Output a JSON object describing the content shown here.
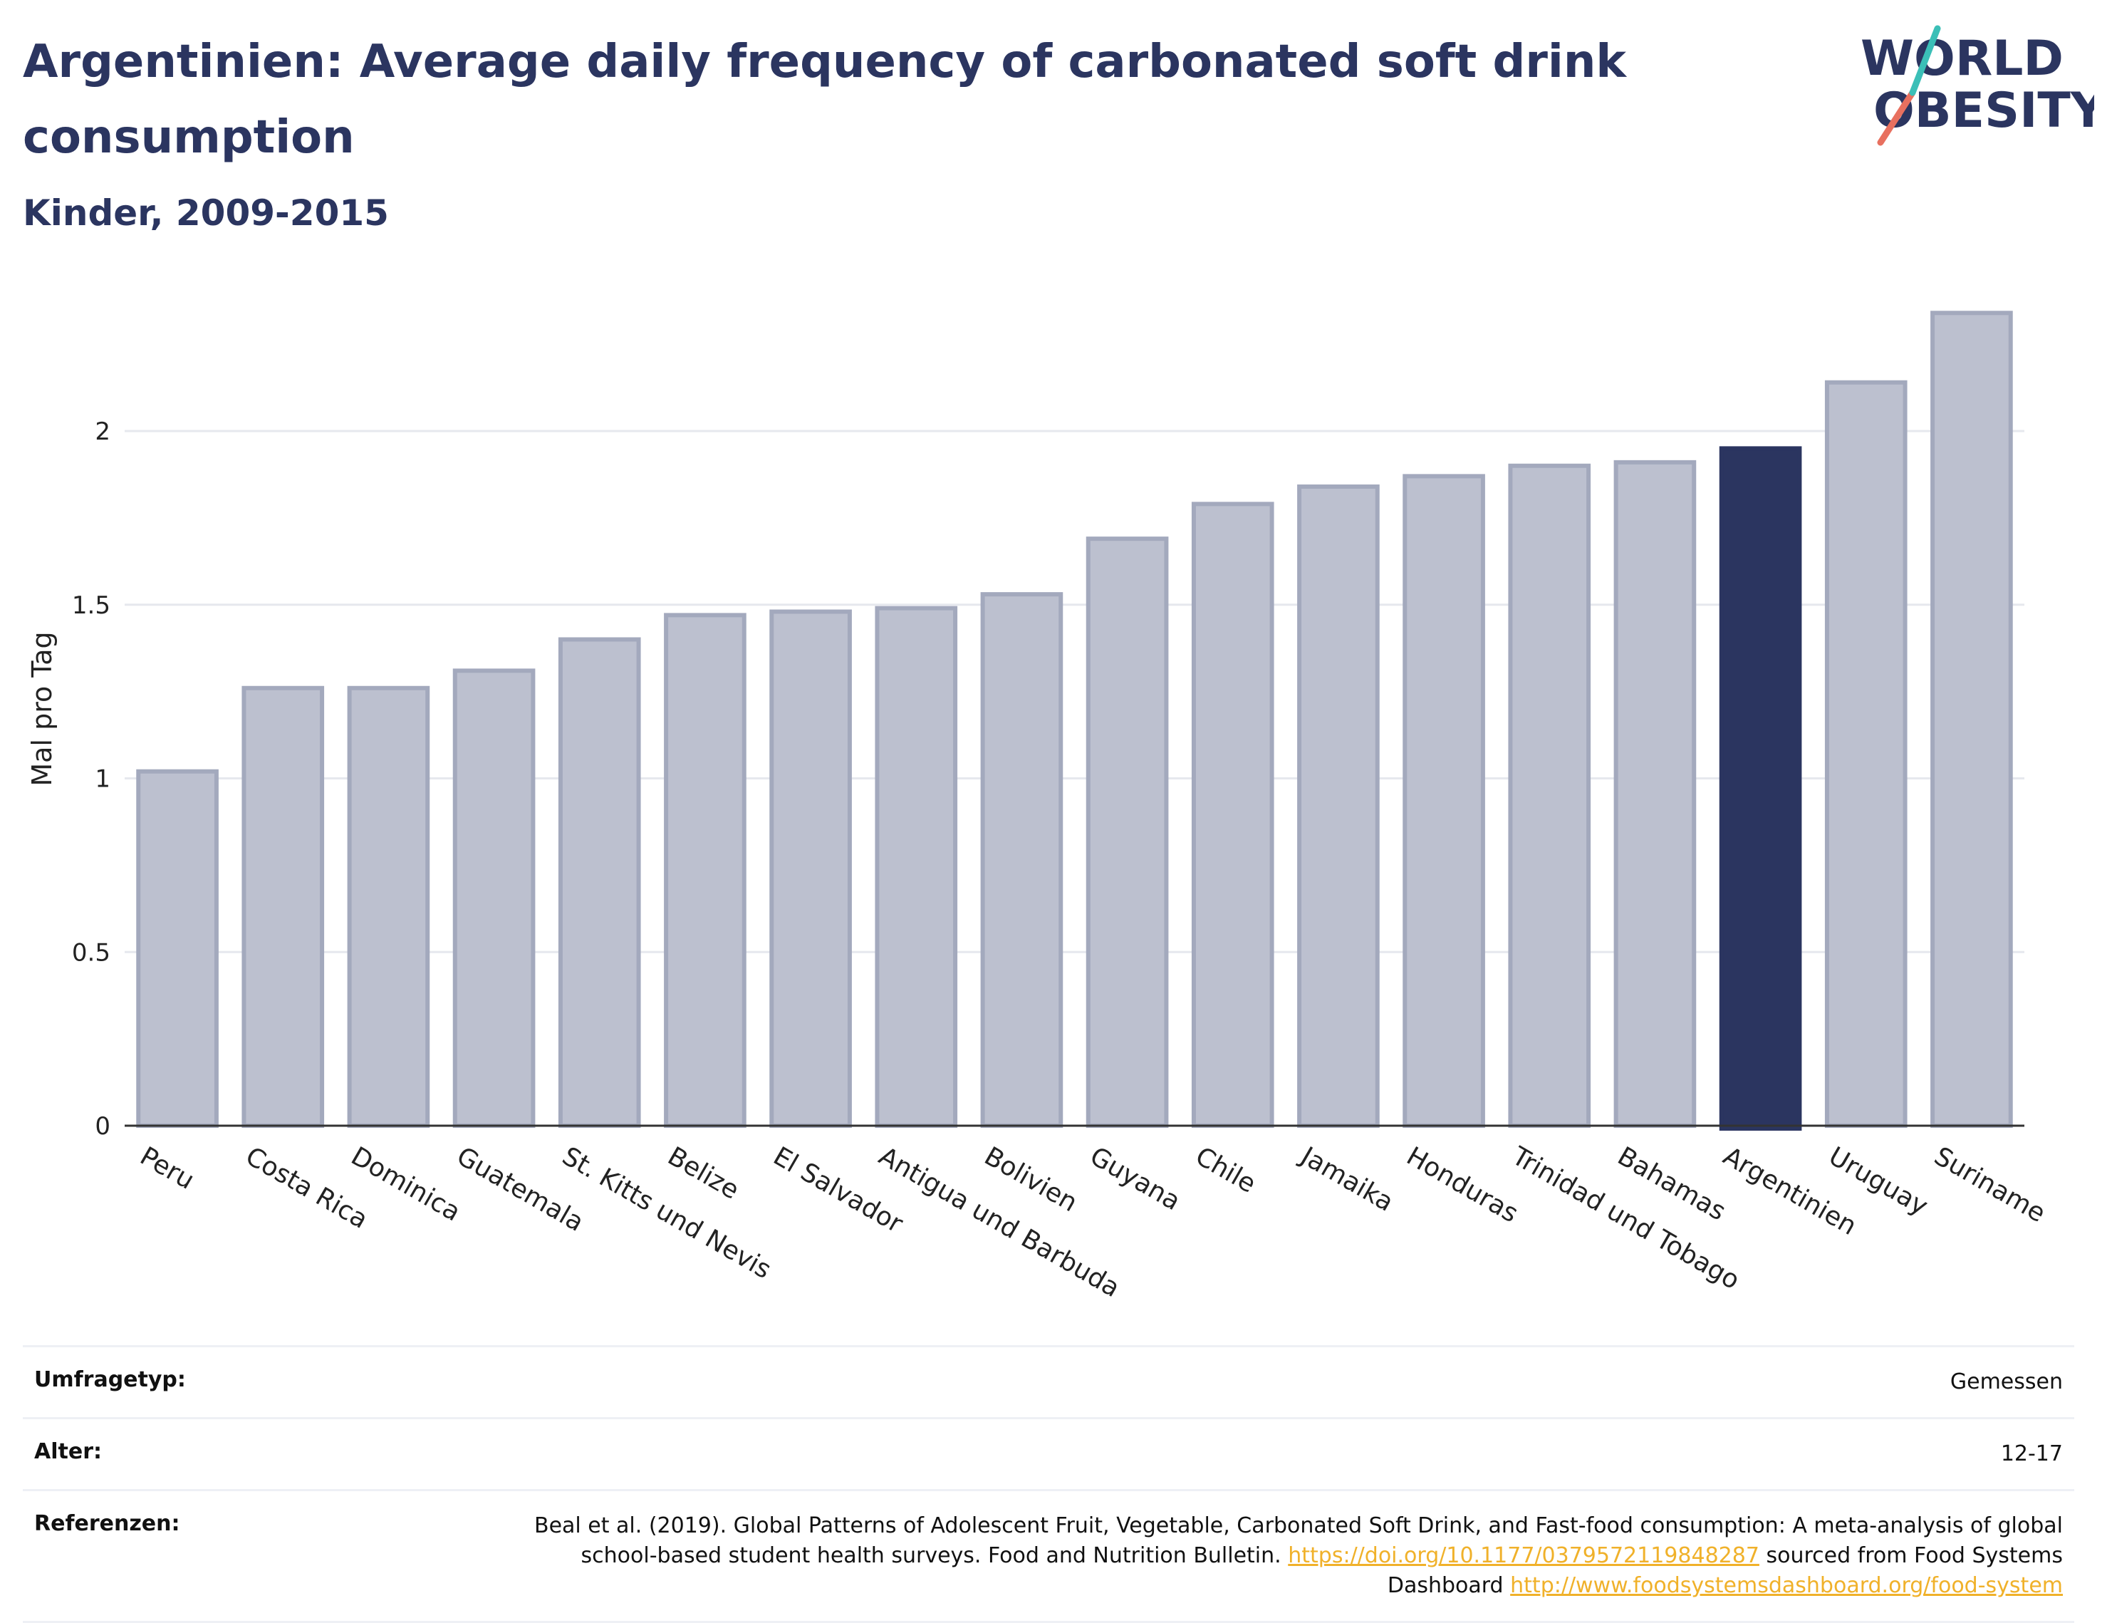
{
  "header": {
    "title": "Argentinien: Average daily frequency of carbonated soft drink consumption",
    "subtitle": "Kinder, 2009-2015"
  },
  "logo": {
    "line1": "WORLD",
    "line2": "OBESITY"
  },
  "chart_data": {
    "type": "bar",
    "ylabel": "Mal pro Tag",
    "ylim": [
      0,
      2.4
    ],
    "yticks": [
      0,
      0.5,
      1,
      1.5,
      2
    ],
    "grid": true,
    "categories": [
      "Peru",
      "Costa Rica",
      "Dominica",
      "Guatemala",
      "St. Kitts und Nevis",
      "Belize",
      "El Salvador",
      "Antigua und Barbuda",
      "Bolivien",
      "Guyana",
      "Chile",
      "Jamaika",
      "Honduras",
      "Trinidad und Tobago",
      "Bahamas",
      "Argentinien",
      "Uruguay",
      "Suriname"
    ],
    "values": [
      1.02,
      1.26,
      1.26,
      1.31,
      1.4,
      1.47,
      1.48,
      1.49,
      1.53,
      1.69,
      1.79,
      1.84,
      1.87,
      1.9,
      1.91,
      1.95,
      2.14,
      2.34
    ],
    "highlight": "Argentinien",
    "colors": {
      "bar": "#bcc0cf",
      "bar_border": "#a3a9bd",
      "highlight": "#2b3560"
    }
  },
  "meta": {
    "survey_type": {
      "label": "Umfragetyp:",
      "value": "Gemessen"
    },
    "age": {
      "label": "Alter:",
      "value": "12-17"
    },
    "references": {
      "label": "Referenzen:",
      "text1": "Beal et al. (2019). Global Patterns of Adolescent Fruit, Vegetable, Carbonated Soft Drink, and Fast-food consumption: A meta-analysis of global school-based student health surveys. Food and Nutrition Bulletin.",
      "link1": "https://doi.org/10.1177/0379572119848287",
      "text2": "sourced from Food Systems Dashboard",
      "link2": "http://www.foodsystemsdashboard.org/food-system"
    }
  }
}
